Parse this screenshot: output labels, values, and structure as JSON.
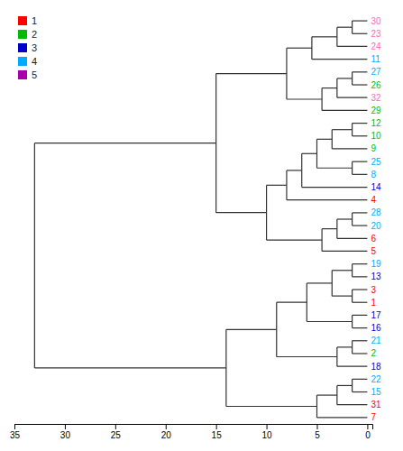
{
  "chart_data": {
    "type": "dendrogram",
    "xlim": [
      35,
      -0.5
    ],
    "xticks": [
      35,
      30,
      25,
      20,
      15,
      10,
      5,
      0
    ],
    "legend": "upper left",
    "legend_items": [
      {
        "name": "1",
        "color": "#FF0000"
      },
      {
        "name": "2",
        "color": "#00BB00"
      },
      {
        "name": "3",
        "color": "#0000CC"
      },
      {
        "name": "4",
        "color": "#00AAFF"
      },
      {
        "name": "5",
        "color": "#AA00AA"
      }
    ],
    "tree": {
      "height": 33.0,
      "children": [
        {
          "height": 15.0,
          "children": [
            {
              "height": 8.0,
              "children": [
                {
                  "height": 5.5,
                  "children": [
                    {
                      "height": 3.0,
                      "children": [
                        {
                          "height": 1.5,
                          "children": [
                            {
                              "label": "30",
                              "color": "#FF69B4",
                              "height": 0
                            },
                            {
                              "label": "23",
                              "color": "#FF69B4",
                              "height": 0
                            }
                          ]
                        },
                        {
                          "label": "24",
                          "color": "#FF69B4",
                          "height": 0
                        }
                      ]
                    },
                    {
                      "label": "11",
                      "color": "#00AAFF",
                      "height": 0
                    }
                  ]
                },
                {
                  "height": 4.5,
                  "children": [
                    {
                      "height": 3.0,
                      "children": [
                        {
                          "height": 1.5,
                          "children": [
                            {
                              "label": "27",
                              "color": "#00AAFF",
                              "height": 0
                            },
                            {
                              "label": "26",
                              "color": "#00BB00",
                              "height": 0
                            }
                          ]
                        },
                        {
                          "label": "32",
                          "color": "#FF69B4",
                          "height": 0
                        }
                      ]
                    },
                    {
                      "label": "29",
                      "color": "#00BB00",
                      "height": 0
                    }
                  ]
                }
              ]
            },
            {
              "height": 10.0,
              "children": [
                {
                  "height": 8.0,
                  "children": [
                    {
                      "height": 6.5,
                      "children": [
                        {
                          "height": 5.0,
                          "children": [
                            {
                              "height": 3.5,
                              "children": [
                                {
                                  "height": 1.5,
                                  "children": [
                                    {
                                      "label": "12",
                                      "color": "#00BB00",
                                      "height": 0
                                    },
                                    {
                                      "label": "10",
                                      "color": "#00BB00",
                                      "height": 0
                                    }
                                  ]
                                },
                                {
                                  "label": "9",
                                  "color": "#00BB00",
                                  "height": 0
                                }
                              ]
                            },
                            {
                              "height": 1.5,
                              "children": [
                                {
                                  "label": "25",
                                  "color": "#00AAFF",
                                  "height": 0
                                },
                                {
                                  "label": "8",
                                  "color": "#00AAFF",
                                  "height": 0
                                }
                              ]
                            }
                          ]
                        },
                        {
                          "label": "14",
                          "color": "#0000CC",
                          "height": 0
                        }
                      ]
                    },
                    {
                      "label": "4",
                      "color": "#FF0000",
                      "height": 0
                    }
                  ]
                },
                {
                  "height": 4.5,
                  "children": [
                    {
                      "height": 3.0,
                      "children": [
                        {
                          "height": 1.5,
                          "children": [
                            {
                              "label": "28",
                              "color": "#00AAFF",
                              "height": 0
                            },
                            {
                              "label": "20",
                              "color": "#00AAFF",
                              "height": 0
                            }
                          ]
                        },
                        {
                          "label": "6",
                          "color": "#FF0000",
                          "height": 0
                        }
                      ]
                    },
                    {
                      "label": "5",
                      "color": "#FF0000",
                      "height": 0
                    }
                  ]
                }
              ]
            }
          ]
        },
        {
          "height": 14.0,
          "children": [
            {
              "height": 9.0,
              "children": [
                {
                  "height": 6.0,
                  "children": [
                    {
                      "height": 3.5,
                      "children": [
                        {
                          "height": 1.5,
                          "children": [
                            {
                              "label": "19",
                              "color": "#00AAFF",
                              "height": 0
                            },
                            {
                              "label": "13",
                              "color": "#0000CC",
                              "height": 0
                            }
                          ]
                        },
                        {
                          "height": 1.5,
                          "children": [
                            {
                              "label": "3",
                              "color": "#FF0000",
                              "height": 0
                            },
                            {
                              "label": "1",
                              "color": "#FF0000",
                              "height": 0
                            }
                          ]
                        }
                      ]
                    },
                    {
                      "height": 1.5,
                      "children": [
                        {
                          "label": "17",
                          "color": "#0000CC",
                          "height": 0
                        },
                        {
                          "label": "16",
                          "color": "#0000CC",
                          "height": 0
                        }
                      ]
                    }
                  ]
                },
                {
                  "height": 3.0,
                  "children": [
                    {
                      "height": 1.5,
                      "children": [
                        {
                          "label": "21",
                          "color": "#00AAFF",
                          "height": 0
                        },
                        {
                          "label": "2",
                          "color": "#00BB00",
                          "height": 0
                        }
                      ]
                    },
                    {
                      "label": "18",
                      "color": "#0000CC",
                      "height": 0
                    }
                  ]
                }
              ]
            },
            {
              "height": 5.0,
              "children": [
                {
                  "height": 3.0,
                  "children": [
                    {
                      "height": 1.5,
                      "children": [
                        {
                          "label": "22",
                          "color": "#00AAFF",
                          "height": 0
                        },
                        {
                          "label": "15",
                          "color": "#00AAFF",
                          "height": 0
                        }
                      ]
                    },
                    {
                      "label": "31",
                      "color": "#FF0000",
                      "height": 0
                    }
                  ]
                },
                {
                  "label": "7",
                  "color": "#FF0000",
                  "height": 0
                }
              ]
            }
          ]
        }
      ]
    }
  }
}
